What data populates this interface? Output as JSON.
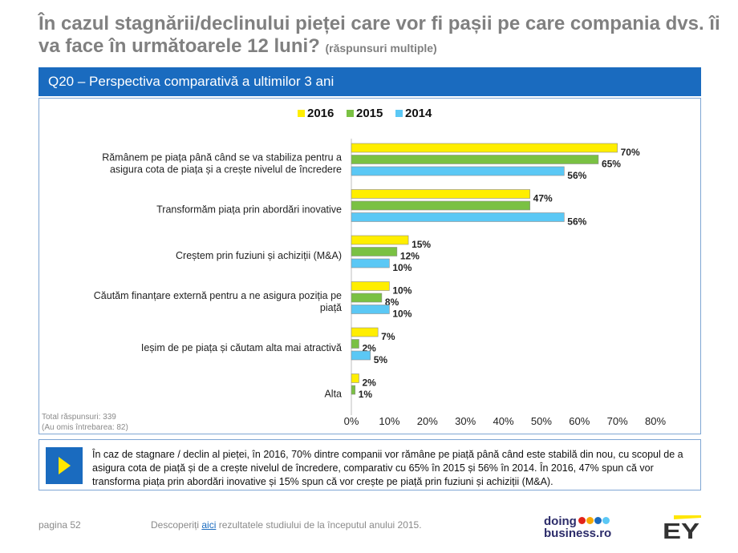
{
  "title": {
    "main": "În cazul stagnării/declinului pieței care vor fi pașii pe care compania dvs. îi va face în următoarele 12 luni?",
    "sub": "(răspunsuri multiple)"
  },
  "question_label": "Q20 – Perspectiva comparativă a ultimilor 3 ani",
  "chart_data": {
    "type": "bar",
    "orientation": "horizontal",
    "categories": [
      "Rămânem pe piața până când se va stabiliza pentru a asigura cota de piața și a crește nivelul de încredere",
      "Transformăm piața prin abordări inovative",
      "Creștem prin fuziuni și achiziții (M&A)",
      "Căutăm finanțare externă pentru a ne asigura poziția pe piață",
      "Ieșim de pe piața și căutam alta mai atractivă",
      "Alta"
    ],
    "category_lines": [
      [
        "Rămânem pe piața până când se va stabiliza pentru a",
        "asigura cota de piața și a crește nivelul de încredere"
      ],
      [
        "Transformăm piața prin abordări inovative"
      ],
      [
        "Creștem prin fuziuni și achiziții (M&A)"
      ],
      [
        "Căutăm finanțare externă pentru a ne asigura poziția pe",
        "piață"
      ],
      [
        "Ieșim de pe piața și căutam alta mai atractivă"
      ],
      [
        "Alta"
      ]
    ],
    "series": [
      {
        "name": "2016",
        "color": "#ffee00",
        "values": [
          70,
          47,
          15,
          10,
          7,
          2
        ],
        "labels": [
          "70%",
          "47%",
          "15%",
          "10%",
          "7%",
          "2%"
        ]
      },
      {
        "name": "2015",
        "color": "#7ac143",
        "values": [
          65,
          47,
          12,
          8,
          2,
          1
        ],
        "labels": [
          "65%",
          "",
          "12%",
          "8%",
          "2%",
          "1%"
        ]
      },
      {
        "name": "2014",
        "color": "#5bc8f5",
        "values": [
          56,
          56,
          10,
          10,
          5,
          null
        ],
        "labels": [
          "56%",
          "56%",
          "10%",
          "10%",
          "5%",
          ""
        ]
      }
    ],
    "xlim": [
      0,
      80
    ],
    "xticks": [
      0,
      10,
      20,
      30,
      40,
      50,
      60,
      70,
      80
    ],
    "xtick_labels": [
      "0%",
      "10%",
      "20%",
      "30%",
      "40%",
      "50%",
      "60%",
      "70%",
      "80%"
    ],
    "legend_position": "top-center",
    "grid": false
  },
  "notes": {
    "total": "Total răspunsuri: 339",
    "omitted": "(Au omis întrebarea:  82)"
  },
  "summary": "În caz de stagnare / declin al pieței, în 2016, 70% dintre companii vor rămâne pe piață până când este stabilă din nou, cu scopul de a asigura cota de piață și de a crește nivelul de încredere, comparativ cu 65% în 2015 și 56% în 2014. În 2016, 47% spun că vor transforma piața prin abordări inovative și 15% spun că vor crește pe piață prin fuziuni și achiziții (M&A).",
  "footer": {
    "page": "pagina 52",
    "text_before": "Descoperiți ",
    "link": "aici",
    "text_after": " rezultatele studiului de la începutul anului 2015."
  },
  "logos": {
    "doing": "doing",
    "business": "business.ro",
    "ey": "EY",
    "dot_colors": [
      "#e2231a",
      "#f7a800",
      "#1a6bbf",
      "#5bc8f5"
    ],
    "ey_color": "#ffe600"
  }
}
